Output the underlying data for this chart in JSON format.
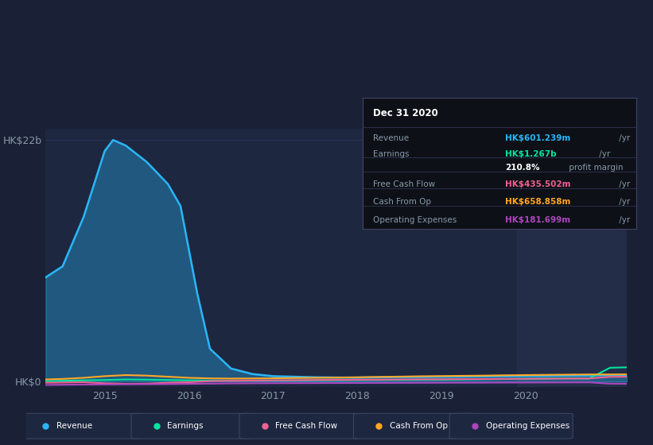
{
  "bg_color": "#1a2035",
  "plot_bg_color": "#1e2740",
  "shade_color": "#232d47",
  "grid_color": "#2a3555",
  "y_label_top": "HK$22b",
  "y_label_bottom": "HK$0",
  "ylim": [
    -500000000,
    23000000000
  ],
  "xlim": [
    2014.3,
    2021.2
  ],
  "shade_start": 2019.9,
  "shade_end": 2021.2,
  "revenue": {
    "x": [
      2014.3,
      2014.5,
      2014.75,
      2015.0,
      2015.1,
      2015.25,
      2015.5,
      2015.75,
      2015.9,
      2016.0,
      2016.1,
      2016.25,
      2016.5,
      2016.75,
      2017.0,
      2017.25,
      2017.5,
      2017.75,
      2018.0,
      2018.25,
      2018.5,
      2018.75,
      2019.0,
      2019.25,
      2019.5,
      2019.75,
      2020.0,
      2020.25,
      2020.5,
      2020.75,
      2021.0,
      2021.2
    ],
    "y": [
      9500000000,
      10500000000,
      15000000000,
      21000000000,
      22000000000,
      21500000000,
      20000000000,
      18000000000,
      16000000000,
      12000000000,
      8000000000,
      3000000000,
      1200000000,
      700000000,
      500000000,
      450000000,
      400000000,
      380000000,
      370000000,
      400000000,
      420000000,
      430000000,
      450000000,
      460000000,
      480000000,
      500000000,
      520000000,
      530000000,
      550000000,
      560000000,
      601000000,
      620000000
    ],
    "color": "#29b6f6",
    "label": "Revenue",
    "linewidth": 1.8,
    "fill_alpha": 0.35
  },
  "earnings": {
    "x": [
      2014.3,
      2014.5,
      2014.75,
      2015.0,
      2015.25,
      2015.5,
      2015.75,
      2016.0,
      2016.25,
      2016.5,
      2016.75,
      2017.0,
      2017.25,
      2017.5,
      2017.75,
      2018.0,
      2018.25,
      2018.5,
      2018.75,
      2019.0,
      2019.25,
      2019.5,
      2019.75,
      2020.0,
      2020.25,
      2020.5,
      2020.75,
      2021.0,
      2021.2
    ],
    "y": [
      50000000,
      80000000,
      120000000,
      150000000,
      200000000,
      180000000,
      150000000,
      120000000,
      100000000,
      80000000,
      90000000,
      100000000,
      110000000,
      120000000,
      130000000,
      140000000,
      150000000,
      160000000,
      170000000,
      180000000,
      200000000,
      220000000,
      240000000,
      260000000,
      280000000,
      300000000,
      280000000,
      1267000000,
      1300000000
    ],
    "color": "#00e5a0",
    "label": "Earnings",
    "linewidth": 1.5
  },
  "free_cash_flow": {
    "x": [
      2014.3,
      2014.5,
      2014.75,
      2015.0,
      2015.25,
      2015.5,
      2015.75,
      2016.0,
      2016.25,
      2016.5,
      2016.75,
      2017.0,
      2017.25,
      2017.5,
      2017.75,
      2018.0,
      2018.25,
      2018.5,
      2018.75,
      2019.0,
      2019.25,
      2019.5,
      2019.75,
      2020.0,
      2020.25,
      2020.5,
      2020.75,
      2021.0,
      2021.2
    ],
    "y": [
      -100000000,
      -80000000,
      -50000000,
      -150000000,
      -200000000,
      -180000000,
      -100000000,
      -50000000,
      50000000,
      80000000,
      100000000,
      120000000,
      130000000,
      150000000,
      160000000,
      170000000,
      180000000,
      200000000,
      210000000,
      220000000,
      230000000,
      240000000,
      250000000,
      260000000,
      270000000,
      280000000,
      290000000,
      435000000,
      450000000
    ],
    "color": "#f06292",
    "label": "Free Cash Flow",
    "linewidth": 1.5
  },
  "cash_from_op": {
    "x": [
      2014.3,
      2014.5,
      2014.75,
      2015.0,
      2015.25,
      2015.5,
      2015.75,
      2016.0,
      2016.25,
      2016.5,
      2016.75,
      2017.0,
      2017.25,
      2017.5,
      2017.75,
      2018.0,
      2018.25,
      2018.5,
      2018.75,
      2019.0,
      2019.25,
      2019.5,
      2019.75,
      2020.0,
      2020.25,
      2020.5,
      2020.75,
      2021.0,
      2021.2
    ],
    "y": [
      200000000,
      250000000,
      350000000,
      500000000,
      600000000,
      550000000,
      450000000,
      350000000,
      300000000,
      280000000,
      290000000,
      310000000,
      330000000,
      350000000,
      370000000,
      400000000,
      430000000,
      460000000,
      490000000,
      510000000,
      530000000,
      550000000,
      580000000,
      600000000,
      620000000,
      640000000,
      660000000,
      658000000,
      670000000
    ],
    "color": "#ffa726",
    "label": "Cash From Op",
    "linewidth": 1.5
  },
  "operating_expenses": {
    "x": [
      2014.3,
      2014.5,
      2014.75,
      2015.0,
      2015.25,
      2015.5,
      2015.75,
      2016.0,
      2016.25,
      2016.5,
      2016.75,
      2017.0,
      2017.25,
      2017.5,
      2017.75,
      2018.0,
      2018.25,
      2018.5,
      2018.75,
      2019.0,
      2019.25,
      2019.5,
      2019.75,
      2020.0,
      2020.25,
      2020.5,
      2020.75,
      2021.0,
      2021.2
    ],
    "y": [
      -300000000,
      -280000000,
      -260000000,
      -250000000,
      -240000000,
      -230000000,
      -220000000,
      -200000000,
      -180000000,
      -160000000,
      -150000000,
      -140000000,
      -135000000,
      -130000000,
      -125000000,
      -120000000,
      -115000000,
      -110000000,
      -105000000,
      -100000000,
      -95000000,
      -90000000,
      -85000000,
      -80000000,
      -75000000,
      -70000000,
      -65000000,
      -181000000,
      -190000000
    ],
    "color": "#ab47bc",
    "label": "Operating Expenses",
    "linewidth": 1.5
  },
  "info_box": {
    "title": "Dec 31 2020",
    "rows": [
      {
        "label": "Revenue",
        "value": "HK$601.239m",
        "unit": " /yr",
        "value_color": "#29b6f6"
      },
      {
        "label": "Earnings",
        "value": "HK$1.267b",
        "unit": " /yr",
        "value_color": "#00e5a0"
      },
      {
        "label": "",
        "value": "210.8%",
        "unit": " profit margin",
        "value_color": "#ffffff"
      },
      {
        "label": "Free Cash Flow",
        "value": "HK$435.502m",
        "unit": " /yr",
        "value_color": "#f06292"
      },
      {
        "label": "Cash From Op",
        "value": "HK$658.858m",
        "unit": " /yr",
        "value_color": "#ffa726"
      },
      {
        "label": "Operating Expenses",
        "value": "HK$181.699m",
        "unit": " /yr",
        "value_color": "#ab47bc"
      }
    ],
    "sep_lines": [
      0.78,
      0.55,
      0.44,
      0.31,
      0.18
    ]
  },
  "legend_items": [
    {
      "label": "Revenue",
      "color": "#29b6f6"
    },
    {
      "label": "Earnings",
      "color": "#00e5a0"
    },
    {
      "label": "Free Cash Flow",
      "color": "#f06292"
    },
    {
      "label": "Cash From Op",
      "color": "#ffa726"
    },
    {
      "label": "Operating Expenses",
      "color": "#ab47bc"
    }
  ]
}
